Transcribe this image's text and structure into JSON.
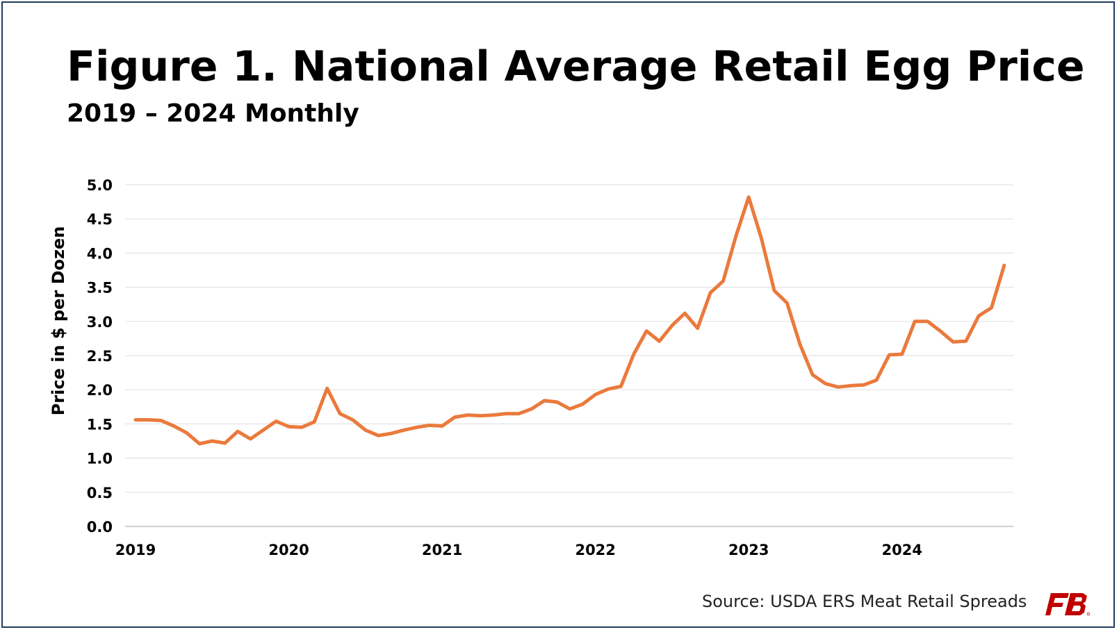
{
  "title": "Figure 1. National Average Retail Egg Price",
  "subtitle": "2019 – 2024 Monthly",
  "source": "Source: USDA ERS Meat Retail Spreads",
  "logo": {
    "icon": "farm-bureau-logo-icon",
    "color": "#c00000"
  },
  "colors": {
    "line": "#ea7a3c",
    "grid": "#e3e3e3",
    "axis": "#bfbfbf",
    "text": "#000000",
    "border": "#1f3b5a"
  },
  "chart_data": {
    "type": "line",
    "title": "Figure 1. National Average Retail Egg Price",
    "subtitle": "2019 – 2024 Monthly",
    "xlabel": "",
    "ylabel": "Price in $ per Dozen",
    "ylim": [
      0,
      5
    ],
    "yticks": [
      "0.0",
      "0.5",
      "1.0",
      "1.5",
      "2.0",
      "2.5",
      "3.0",
      "3.5",
      "4.0",
      "4.5",
      "5.0"
    ],
    "xticks": [
      "2019",
      "2020",
      "2021",
      "2022",
      "2023",
      "2024"
    ],
    "grid": "horizontal",
    "legend": "none",
    "series": [
      {
        "values": [
          1.56,
          1.56,
          1.55,
          1.47,
          1.37,
          1.21,
          1.25,
          1.22,
          1.39,
          1.28,
          1.41,
          1.54,
          1.46,
          1.45,
          1.53,
          2.02,
          1.65,
          1.56,
          1.41,
          1.33,
          1.36,
          1.41,
          1.45,
          1.48,
          1.47,
          1.6,
          1.63,
          1.62,
          1.63,
          1.65,
          1.65,
          1.72,
          1.84,
          1.82,
          1.72,
          1.79,
          1.93,
          2.01,
          2.05,
          2.52,
          2.86,
          2.71,
          2.94,
          3.12,
          2.9,
          3.42,
          3.59,
          4.25,
          4.82,
          4.21,
          3.45,
          3.27,
          2.67,
          2.22,
          2.09,
          2.04,
          2.06,
          2.07,
          2.14,
          2.51,
          2.52,
          3.0,
          3.0,
          2.86,
          2.7,
          2.71,
          3.08,
          3.2,
          3.82
        ]
      }
    ]
  }
}
